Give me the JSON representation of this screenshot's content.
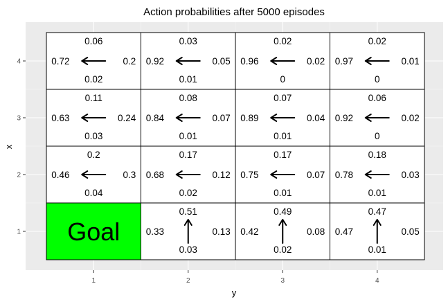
{
  "chart_data": {
    "type": "heatmap",
    "title": "Action probabilities after  5000  episodes",
    "xlabel": "y",
    "ylabel": "x",
    "x_ticks": [
      "1",
      "2",
      "3",
      "4"
    ],
    "y_ticks": [
      "1",
      "2",
      "3",
      "4"
    ],
    "grid": true,
    "goal": {
      "x": 1,
      "y": 1,
      "label": "Goal",
      "color": "#00ff00"
    },
    "cells": [
      {
        "x": 4,
        "y": 1,
        "up": "0.06",
        "left": "0.72",
        "right": "0.2",
        "down": "0.02",
        "arrow": "left"
      },
      {
        "x": 4,
        "y": 2,
        "up": "0.03",
        "left": "0.92",
        "right": "0.05",
        "down": "0.01",
        "arrow": "left"
      },
      {
        "x": 4,
        "y": 3,
        "up": "0.02",
        "left": "0.96",
        "right": "0.02",
        "down": "0",
        "arrow": "left"
      },
      {
        "x": 4,
        "y": 4,
        "up": "0.02",
        "left": "0.97",
        "right": "0.01",
        "down": "0",
        "arrow": "left"
      },
      {
        "x": 3,
        "y": 1,
        "up": "0.11",
        "left": "0.63",
        "right": "0.24",
        "down": "0.03",
        "arrow": "left"
      },
      {
        "x": 3,
        "y": 2,
        "up": "0.08",
        "left": "0.84",
        "right": "0.07",
        "down": "0.01",
        "arrow": "left"
      },
      {
        "x": 3,
        "y": 3,
        "up": "0.07",
        "left": "0.89",
        "right": "0.04",
        "down": "0.01",
        "arrow": "left"
      },
      {
        "x": 3,
        "y": 4,
        "up": "0.06",
        "left": "0.92",
        "right": "0.02",
        "down": "0",
        "arrow": "left"
      },
      {
        "x": 2,
        "y": 1,
        "up": "0.2",
        "left": "0.46",
        "right": "0.3",
        "down": "0.04",
        "arrow": "left"
      },
      {
        "x": 2,
        "y": 2,
        "up": "0.17",
        "left": "0.68",
        "right": "0.12",
        "down": "0.02",
        "arrow": "left"
      },
      {
        "x": 2,
        "y": 3,
        "up": "0.17",
        "left": "0.75",
        "right": "0.07",
        "down": "0.01",
        "arrow": "left"
      },
      {
        "x": 2,
        "y": 4,
        "up": "0.18",
        "left": "0.78",
        "right": "0.03",
        "down": "0.01",
        "arrow": "left"
      },
      {
        "x": 1,
        "y": 2,
        "up": "0.51",
        "left": "0.33",
        "right": "0.13",
        "down": "0.03",
        "arrow": "up"
      },
      {
        "x": 1,
        "y": 3,
        "up": "0.49",
        "left": "0.42",
        "right": "0.08",
        "down": "0.02",
        "arrow": "up"
      },
      {
        "x": 1,
        "y": 4,
        "up": "0.47",
        "left": "0.47",
        "right": "0.05",
        "down": "0.01",
        "arrow": "up"
      }
    ]
  }
}
